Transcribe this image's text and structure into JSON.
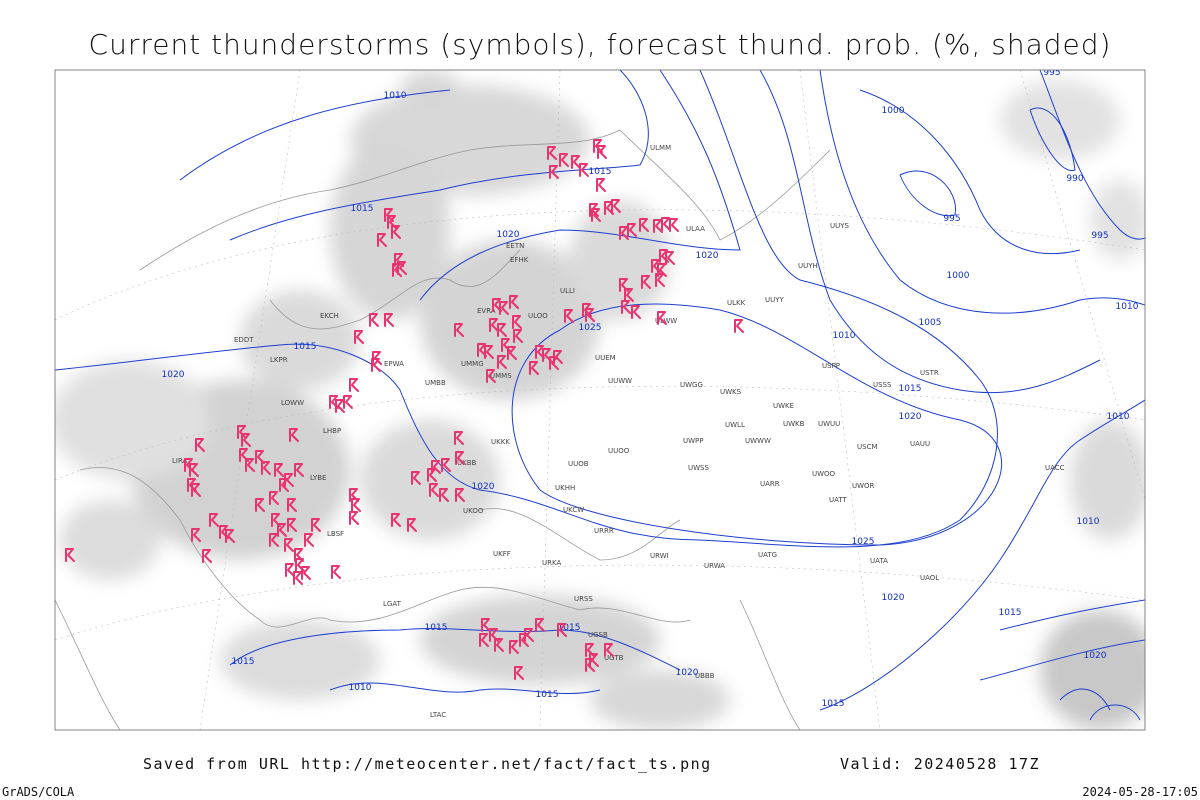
{
  "title": "Current thunderstorms (symbols), forecast thund. prob. (%, shaded)",
  "footer": {
    "saved_from": "Saved from URL http://meteocenter.net/fact/fact_ts.png",
    "valid": "Valid: 20240528 17Z",
    "credit": "GrADS/COLA",
    "timestamp": "2024-05-28-17:05"
  },
  "isobar_labels": [
    "1010",
    "1015",
    "1015",
    "1020",
    "1020",
    "1025",
    "1015",
    "1020",
    "1020",
    "1025",
    "1020",
    "1015",
    "1015",
    "1015",
    "1010",
    "1015",
    "1020",
    "1015",
    "1010",
    "1015",
    "1020",
    "1005",
    "1000",
    "995",
    "1000",
    "990",
    "995",
    "995",
    "1010",
    "1010",
    "1010",
    "1015",
    "1020"
  ],
  "stations": [
    "UUEM",
    "UUWW",
    "UWGG",
    "UWKS",
    "UWKE",
    "UWKB",
    "UWUU",
    "UWLL",
    "UWWW",
    "UWPP",
    "UUOO",
    "UUOB",
    "UWSS",
    "UWOO",
    "UARR",
    "UATT",
    "UWOR",
    "UKCW",
    "URRR",
    "URWI",
    "URWA",
    "UATG",
    "UATA",
    "UAOL",
    "UACC",
    "UAUU",
    "USCM",
    "USSS",
    "USTR",
    "USPP",
    "ULLI",
    "ULWW",
    "ULKK",
    "UUYY",
    "UUYH",
    "UUYS",
    "ULAA",
    "ULMM",
    "EFHK",
    "EETN",
    "ULOO",
    "EVRA",
    "UMMS",
    "UMMG",
    "UKKK",
    "UKBB",
    "UKHH",
    "UKOO",
    "UKFF",
    "URKA",
    "URSS",
    "UGSB",
    "UGTB",
    "UBBB",
    "LTAC",
    "LBSF",
    "LYBE",
    "LHBP",
    "LOWW",
    "EPWA",
    "UMBB",
    "EKCH",
    "EDDT",
    "LKPR",
    "LIRA",
    "LGAT"
  ]
}
